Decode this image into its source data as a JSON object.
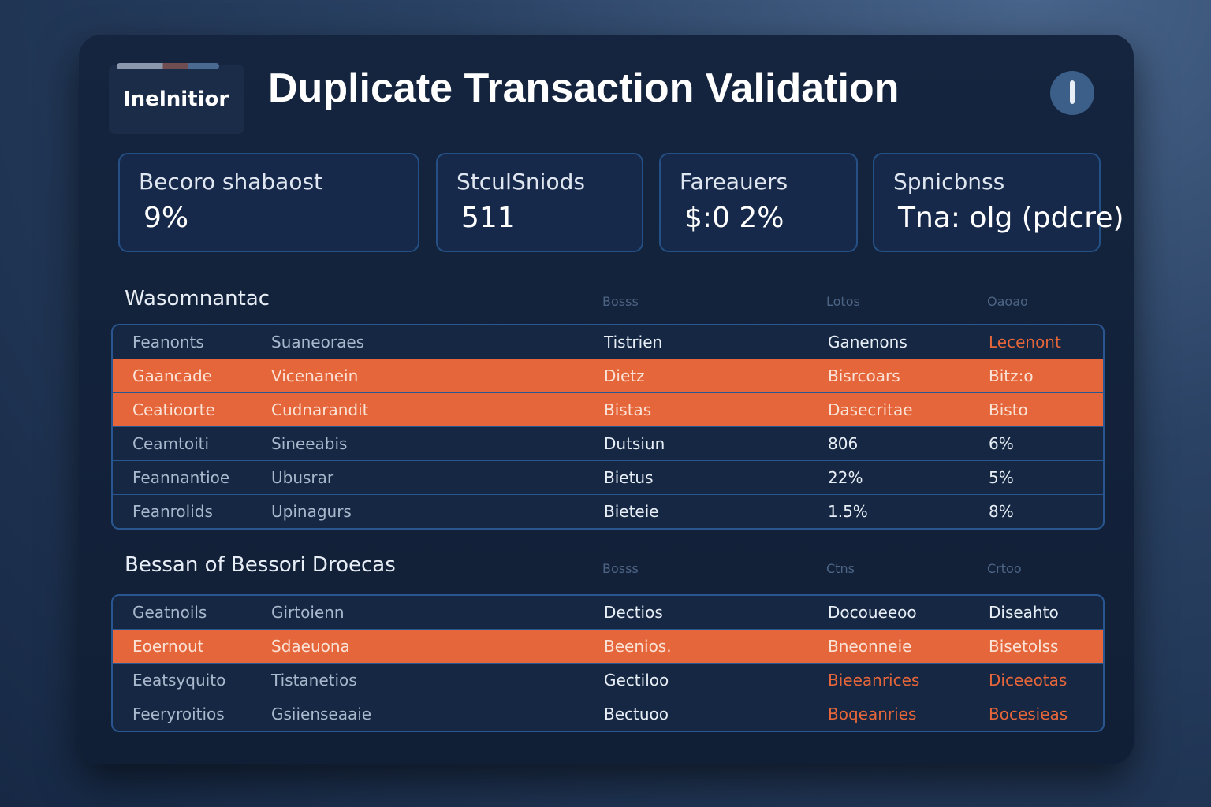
{
  "header": {
    "badge": "Inelnitior",
    "title": "Duplicate Transaction Validation"
  },
  "cards": [
    {
      "label": "Becoro shabaost",
      "value": "9%"
    },
    {
      "label": "StcuISniods",
      "value": "511"
    },
    {
      "label": "Fareauers",
      "value": "$:0 2%"
    },
    {
      "label": "Spnicbnss",
      "value": "Tna: olg (pdcre)"
    }
  ],
  "sections": [
    {
      "title": "Wasomnantac",
      "column_headers": [
        "Bosss",
        "Lotos",
        "Oaoao"
      ],
      "rows": [
        [
          "Feanonts",
          "Suaneoraes",
          "Tistrien",
          "Ganenons",
          "Lecenont"
        ],
        [
          "Gaancade",
          "Vicenanein",
          "Dietz",
          "Bisrcoars",
          "Bitz:o"
        ],
        [
          "Ceatioorte",
          "Cudnarandit",
          "Bistas",
          "Dasecritae",
          "Bisto"
        ],
        [
          "Ceamtoiti",
          "Sineeabis",
          "Dutsiun",
          "806",
          "6%"
        ],
        [
          "Feannantioe",
          "Ubusrar",
          "Bietus",
          "22%",
          "5%"
        ],
        [
          "Feanrolids",
          "Upinagurs",
          "Bieteie",
          "1.5%",
          "8%"
        ]
      ]
    },
    {
      "title": "Bessan of Bessori Droecas",
      "column_headers": [
        "Bosss",
        "Ctns",
        "Crtoo"
      ],
      "rows": [
        [
          "Geatnoils",
          "Girtoienn",
          "Dectios",
          "Docoueeoo",
          "Diseahto"
        ],
        [
          "Eoernout",
          "Sdaeuona",
          "Beenios.",
          "Bneonneie",
          "Bisetolss"
        ],
        [
          "Eeatsyquito",
          "Tistanetios",
          "Gectiloo",
          "Bieeanrices",
          "Diceeotas"
        ],
        [
          "Feeryroitios",
          "Gsiienseaaie",
          "Bectuoo",
          "Boqeanries",
          "Bocesieas"
        ]
      ]
    }
  ]
}
